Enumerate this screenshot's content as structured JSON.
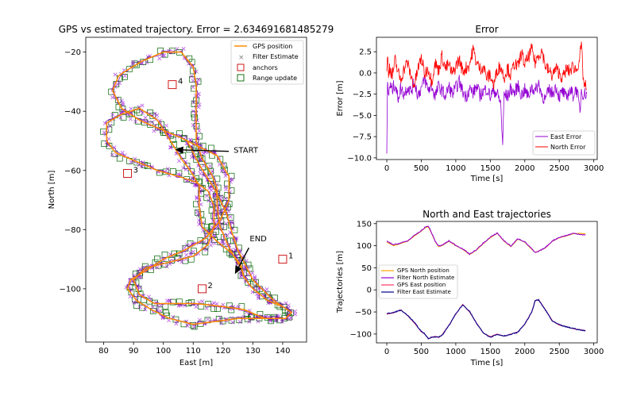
{
  "figure": {
    "background": "#ffffff"
  },
  "chart_data": [
    {
      "id": "trajectory",
      "type": "scatter",
      "title": "GPS vs estimated trajectory. Error = 2.634691681485279",
      "xlabel": "East [m]",
      "ylabel": "North [m]",
      "xlim": [
        74,
        148
      ],
      "ylim": [
        -118,
        -15
      ],
      "xticks": [
        80,
        90,
        100,
        110,
        120,
        130,
        140
      ],
      "yticks": [
        -20,
        -40,
        -60,
        -80,
        -100
      ],
      "legend": {
        "placement": "top-right",
        "entries": [
          "GPS position",
          "Filter Estimate",
          "anchors",
          "Range update"
        ]
      },
      "colors": {
        "gps": "#ff8c00",
        "filter": "#9400d3",
        "anchor": "#cc0000",
        "range": "#006400"
      },
      "gps_path": [
        [
          108,
          -50
        ],
        [
          112,
          -58
        ],
        [
          117,
          -66
        ],
        [
          121,
          -74
        ],
        [
          123,
          -81
        ],
        [
          125,
          -87
        ],
        [
          128,
          -93
        ],
        [
          130,
          -97
        ],
        [
          134,
          -101
        ],
        [
          137,
          -104
        ],
        [
          140,
          -106
        ],
        [
          143,
          -108
        ],
        [
          141,
          -110
        ],
        [
          133,
          -110
        ],
        [
          125,
          -110
        ],
        [
          118,
          -111
        ],
        [
          110,
          -112
        ],
        [
          102,
          -110
        ],
        [
          96,
          -107
        ],
        [
          91,
          -104
        ],
        [
          88,
          -100
        ],
        [
          89,
          -97
        ],
        [
          94,
          -94
        ],
        [
          100,
          -90
        ],
        [
          107,
          -87
        ],
        [
          114,
          -83
        ],
        [
          119,
          -77
        ],
        [
          122,
          -70
        ],
        [
          122,
          -62
        ],
        [
          118,
          -55
        ],
        [
          112,
          -52
        ],
        [
          106,
          -49
        ],
        [
          99,
          -46
        ],
        [
          92,
          -43
        ],
        [
          86,
          -39
        ],
        [
          83,
          -33
        ],
        [
          85,
          -28
        ],
        [
          88,
          -26
        ],
        [
          93,
          -23
        ],
        [
          100,
          -20
        ],
        [
          106,
          -20
        ],
        [
          110,
          -25
        ],
        [
          111,
          -31
        ],
        [
          111,
          -40
        ],
        [
          111,
          -50
        ],
        [
          113,
          -56
        ],
        [
          116,
          -61
        ],
        [
          118,
          -66
        ],
        [
          118,
          -72
        ],
        [
          119,
          -79
        ],
        [
          122,
          -86
        ],
        [
          126,
          -93
        ],
        [
          127,
          -96
        ],
        [
          130,
          -100
        ],
        [
          135,
          -104
        ],
        [
          140,
          -106
        ],
        [
          143,
          -108
        ],
        [
          141,
          -110
        ],
        [
          134,
          -110
        ],
        [
          127,
          -107
        ],
        [
          120,
          -106
        ],
        [
          111,
          -105
        ],
        [
          104,
          -105
        ],
        [
          97,
          -105
        ],
        [
          92,
          -102
        ],
        [
          90,
          -97
        ],
        [
          94,
          -93
        ],
        [
          102,
          -91
        ],
        [
          110,
          -89
        ],
        [
          115,
          -85
        ],
        [
          117,
          -79
        ],
        [
          117,
          -72
        ],
        [
          115,
          -67
        ],
        [
          111,
          -64
        ],
        [
          105,
          -62
        ],
        [
          98,
          -60
        ],
        [
          91,
          -57
        ],
        [
          84,
          -54
        ],
        [
          81,
          -50
        ],
        [
          81,
          -44
        ],
        [
          86,
          -41
        ],
        [
          92,
          -39
        ],
        [
          98,
          -43
        ],
        [
          103,
          -51
        ],
        [
          106,
          -56
        ],
        [
          109,
          -60
        ],
        [
          112,
          -65
        ],
        [
          112,
          -72
        ],
        [
          113,
          -79
        ],
        [
          118,
          -84
        ],
        [
          123,
          -88
        ],
        [
          126,
          -92
        ],
        [
          127,
          -96
        ]
      ],
      "anchors": [
        {
          "label": "1",
          "east": 140,
          "north": -90
        },
        {
          "label": "2",
          "east": 113,
          "north": -100
        },
        {
          "label": "3",
          "east": 88,
          "north": -61
        },
        {
          "label": "4",
          "east": 103,
          "north": -31
        }
      ],
      "annotations": [
        {
          "text": "START",
          "east": 104,
          "north": -53,
          "text_east": 123,
          "text_north": -53
        },
        {
          "text": "END",
          "east": 124,
          "north": -95,
          "text_east": 130,
          "text_north": -84
        }
      ]
    },
    {
      "id": "error",
      "type": "line",
      "title": "Error",
      "xlabel": "Time [s]",
      "ylabel": "Error [m]",
      "xlim": [
        -150,
        3050
      ],
      "ylim": [
        -10.2,
        4.2
      ],
      "xticks": [
        0,
        500,
        1000,
        1500,
        2000,
        2500,
        3000
      ],
      "yticks": [
        2.5,
        0.0,
        -2.5,
        -5.0,
        -7.5,
        -10.0
      ],
      "legend": {
        "placement": "bottom-right",
        "entries": [
          "East Error",
          "North Error"
        ]
      },
      "series": [
        {
          "name": "East Error",
          "color": "#9400d3",
          "t": [
            0,
            10,
            25,
            40,
            80,
            120,
            160,
            200,
            250,
            300,
            350,
            400,
            450,
            500,
            550,
            600,
            650,
            700,
            750,
            800,
            850,
            900,
            950,
            1000,
            1050,
            1100,
            1150,
            1200,
            1250,
            1300,
            1350,
            1400,
            1450,
            1500,
            1550,
            1600,
            1650,
            1680,
            1700,
            1750,
            1800,
            1850,
            1900,
            1950,
            2000,
            2050,
            2100,
            2150,
            2200,
            2250,
            2300,
            2350,
            2400,
            2450,
            2500,
            2550,
            2600,
            2650,
            2700,
            2750,
            2800,
            2820,
            2850,
            2900
          ],
          "values": [
            -9.5,
            -1.2,
            -2.8,
            -1.5,
            -2.0,
            -1.2,
            -3.0,
            -1.8,
            -2.5,
            -1.6,
            -2.2,
            -1.0,
            -2.6,
            -1.8,
            -0.8,
            -2.0,
            -1.5,
            -2.8,
            -1.6,
            -2.0,
            -2.8,
            -1.6,
            -2.5,
            -1.8,
            -1.0,
            -2.2,
            -2.8,
            -1.8,
            -2.4,
            -1.6,
            -2.6,
            -2.2,
            -1.8,
            -2.8,
            -2.0,
            -2.5,
            -3.5,
            -8.5,
            -2.5,
            -2.8,
            -1.8,
            -2.4,
            -1.5,
            -2.6,
            -2.0,
            -2.8,
            -1.6,
            -2.2,
            -1.2,
            -2.6,
            -3.2,
            -2.0,
            -2.4,
            -1.6,
            -2.8,
            -2.2,
            -3.0,
            -2.0,
            -2.6,
            -1.8,
            -4.5,
            -2.0,
            -2.5,
            -2.4
          ]
        },
        {
          "name": "North Error",
          "color": "#ff0000",
          "t": [
            0,
            10,
            25,
            40,
            80,
            120,
            160,
            200,
            250,
            300,
            350,
            400,
            450,
            500,
            550,
            600,
            650,
            700,
            750,
            800,
            850,
            900,
            950,
            1000,
            1050,
            1100,
            1150,
            1200,
            1250,
            1300,
            1350,
            1400,
            1450,
            1500,
            1550,
            1600,
            1650,
            1700,
            1750,
            1800,
            1850,
            1900,
            1950,
            2000,
            2050,
            2100,
            2150,
            2200,
            2250,
            2300,
            2350,
            2400,
            2450,
            2500,
            2550,
            2600,
            2650,
            2700,
            2750,
            2800,
            2820,
            2850,
            2900
          ],
          "values": [
            0.2,
            2.4,
            -0.5,
            0.8,
            -0.3,
            1.5,
            0.2,
            -0.8,
            0.5,
            1.2,
            -0.4,
            -1.5,
            0.4,
            1.8,
            -0.2,
            0.6,
            -1.0,
            1.2,
            0.3,
            2.0,
            0.5,
            1.0,
            -0.2,
            0.8,
            1.6,
            0.2,
            0.6,
            1.0,
            2.8,
            1.2,
            0.5,
            0.8,
            -0.6,
            -0.2,
            -1.5,
            0.4,
            0.8,
            -0.5,
            0.6,
            -0.3,
            1.2,
            0.6,
            2.4,
            1.0,
            1.8,
            2.8,
            1.2,
            2.2,
            2.6,
            0.8,
            0.2,
            -0.3,
            0.5,
            0.0,
            -0.6,
            0.4,
            0.2,
            0.8,
            0.3,
            2.0,
            3.3,
            -1.0,
            -2.0
          ]
        }
      ]
    },
    {
      "id": "trajectories",
      "type": "line",
      "title": "North and East trajectories",
      "xlabel": "Time [s]",
      "ylabel": "Trajectories [m]",
      "xlim": [
        -150,
        3050
      ],
      "ylim": [
        -120,
        155
      ],
      "xticks": [
        0,
        500,
        1000,
        1500,
        2000,
        2500,
        3000
      ],
      "yticks": [
        150,
        100,
        50,
        0,
        -50,
        -100
      ],
      "legend": {
        "placement": "center-left",
        "entries": [
          "GPS North position",
          "Filter North Estimate",
          "GPS East position",
          "Filter East Estimate"
        ]
      },
      "t": [
        0,
        100,
        200,
        300,
        400,
        500,
        550,
        600,
        650,
        700,
        750,
        800,
        900,
        1000,
        1100,
        1200,
        1300,
        1400,
        1500,
        1600,
        1700,
        1800,
        1900,
        2000,
        2100,
        2150,
        2200,
        2300,
        2400,
        2500,
        2600,
        2700,
        2800,
        2880
      ],
      "series": [
        {
          "name": "GPS North position",
          "color": "#ffa500",
          "values": [
            108,
            100,
            105,
            110,
            122,
            133,
            140,
            143,
            128,
            110,
            98,
            100,
            110,
            100,
            92,
            80,
            90,
            105,
            118,
            128,
            110,
            98,
            115,
            108,
            92,
            85,
            88,
            95,
            110,
            118,
            122,
            127,
            128,
            127
          ]
        },
        {
          "name": "Filter North Estimate",
          "color": "#9400d3",
          "values": [
            110,
            102,
            106,
            111,
            123,
            134,
            141,
            145,
            129,
            111,
            99,
            101,
            111,
            101,
            93,
            81,
            91,
            106,
            119,
            129,
            111,
            99,
            116,
            109,
            93,
            84,
            87,
            96,
            111,
            119,
            123,
            128,
            126,
            124
          ]
        },
        {
          "name": "GPS East position",
          "color": "#ff3366",
          "values": [
            -55,
            -52,
            -45,
            -58,
            -75,
            -95,
            -100,
            -110,
            -108,
            -105,
            -108,
            -102,
            -80,
            -55,
            -33,
            -50,
            -75,
            -98,
            -106,
            -100,
            -105,
            -100,
            -95,
            -78,
            -50,
            -25,
            -22,
            -45,
            -70,
            -80,
            -83,
            -88,
            -90,
            -92
          ]
        },
        {
          "name": "Filter East Estimate",
          "color": "#00008b",
          "values": [
            -54,
            -51,
            -46,
            -57,
            -74,
            -94,
            -99,
            -111,
            -107,
            -106,
            -107,
            -103,
            -81,
            -54,
            -34,
            -49,
            -76,
            -97,
            -107,
            -101,
            -104,
            -101,
            -96,
            -77,
            -51,
            -24,
            -23,
            -46,
            -71,
            -79,
            -84,
            -87,
            -91,
            -93
          ]
        }
      ]
    }
  ]
}
